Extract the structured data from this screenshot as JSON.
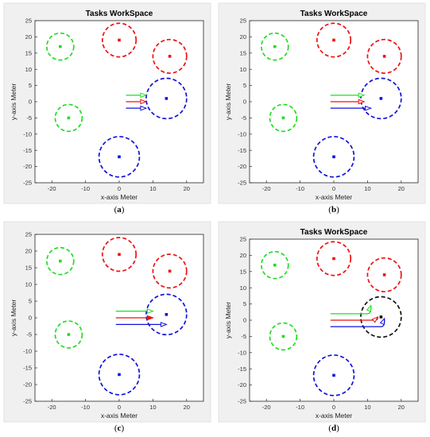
{
  "chart_data": [
    {
      "type": "scatter",
      "panel": "a",
      "title": "Tasks WorkSpace",
      "xlabel": "x-axis  Meter",
      "ylabel": "y-axis  Meter",
      "caption": "a",
      "xlim": [
        -25,
        25
      ],
      "ylim": [
        -25,
        25
      ],
      "xticks": [
        "-20",
        "-10",
        "0",
        "10",
        "20"
      ],
      "yticks": [
        "25",
        "20",
        "15",
        "10",
        "5",
        "0",
        "-5",
        "-10",
        "-15",
        "-20",
        "-25"
      ],
      "grid": false,
      "tasks": [
        {
          "x": -17.5,
          "y": 17,
          "r": 4,
          "color": "#22dd22"
        },
        {
          "x": -15,
          "y": -5,
          "r": 4,
          "color": "#22dd22"
        },
        {
          "x": 0,
          "y": 19,
          "r": 5,
          "color": "#ee1111"
        },
        {
          "x": 15,
          "y": 14,
          "r": 5,
          "color": "#ee1111"
        },
        {
          "x": 14,
          "y": 1,
          "r": 6,
          "color": "#1111dd"
        },
        {
          "x": 0,
          "y": -17,
          "r": 6,
          "color": "#1111dd"
        }
      ],
      "agents": [
        {
          "x0": 2,
          "x1": 8,
          "y": 2,
          "color": "#22dd22",
          "head": "open"
        },
        {
          "x0": 2,
          "x1": 8,
          "y": 0,
          "color": "#ee1111",
          "head": "open"
        },
        {
          "x0": 2,
          "x1": 8,
          "y": -2,
          "color": "#1111dd",
          "head": "open"
        }
      ]
    },
    {
      "type": "scatter",
      "panel": "b",
      "title": "Tasks WorkSpace",
      "xlabel": "x-axis  Meter",
      "ylabel": "y-axis  Meter",
      "caption": "b",
      "xlim": [
        -25,
        25
      ],
      "ylim": [
        -25,
        25
      ],
      "xticks": [
        "-20",
        "-10",
        "0",
        "10",
        "20"
      ],
      "yticks": [
        "25",
        "20",
        "15",
        "10",
        "5",
        "0",
        "-5",
        "-10",
        "-15",
        "-20",
        "-25"
      ],
      "grid": false,
      "tasks": [
        {
          "x": -17.5,
          "y": 17,
          "r": 4,
          "color": "#22dd22"
        },
        {
          "x": -15,
          "y": -5,
          "r": 4,
          "color": "#22dd22"
        },
        {
          "x": 0,
          "y": 19,
          "r": 5,
          "color": "#ee1111"
        },
        {
          "x": 15,
          "y": 14,
          "r": 5,
          "color": "#ee1111"
        },
        {
          "x": 14,
          "y": 1,
          "r": 6,
          "color": "#1111dd"
        },
        {
          "x": 0,
          "y": -17,
          "r": 6,
          "color": "#1111dd"
        }
      ],
      "agents": [
        {
          "x0": -1,
          "x1": 9,
          "y": 2,
          "color": "#22dd22",
          "head": "open"
        },
        {
          "x0": -1,
          "x1": 9,
          "y": 0,
          "color": "#ee1111",
          "head": "open"
        },
        {
          "x0": -1,
          "x1": 11,
          "y": -2,
          "color": "#1111dd",
          "head": "open"
        }
      ]
    },
    {
      "type": "scatter",
      "panel": "c",
      "title": "",
      "xlabel": "x-axis  Meter",
      "ylabel": "y-axis  Meter",
      "caption": "c",
      "xlim": [
        -25,
        25
      ],
      "ylim": [
        -25,
        25
      ],
      "xticks": [
        "-20",
        "-10",
        "0",
        "10",
        "20"
      ],
      "yticks": [
        "25",
        "20",
        "15",
        "10",
        "5",
        "0",
        "-5",
        "-10",
        "-15",
        "-20",
        "-25"
      ],
      "grid": false,
      "tasks": [
        {
          "x": -17.5,
          "y": 17,
          "r": 4,
          "color": "#22dd22"
        },
        {
          "x": -15,
          "y": -5,
          "r": 4,
          "color": "#22dd22"
        },
        {
          "x": 0,
          "y": 19,
          "r": 5,
          "color": "#ee1111"
        },
        {
          "x": 15,
          "y": 14,
          "r": 5,
          "color": "#ee1111"
        },
        {
          "x": 14,
          "y": 1,
          "r": 6,
          "color": "#1111dd"
        },
        {
          "x": 0,
          "y": -17,
          "r": 6,
          "color": "#1111dd"
        }
      ],
      "agents": [
        {
          "x0": -1,
          "x1": 10,
          "y": 2,
          "color": "#22dd22",
          "head": "open"
        },
        {
          "x0": -1,
          "x1": 10,
          "y": 0,
          "color": "#ee1111",
          "head": "filled"
        },
        {
          "x0": -1,
          "x1": 14,
          "y": -2,
          "color": "#1111dd",
          "head": "open"
        }
      ]
    },
    {
      "type": "scatter",
      "panel": "d",
      "title": "Tasks WorkSpace",
      "xlabel": "x-axis  Meter",
      "ylabel": "y-axis  Meter",
      "caption": "d",
      "xlim": [
        -25,
        25
      ],
      "ylim": [
        -25,
        25
      ],
      "xticks": [
        "-20",
        "-10",
        "0",
        "10",
        "20"
      ],
      "yticks": [
        "25",
        "20",
        "15",
        "10",
        "5",
        "0",
        "-5",
        "-10",
        "-15",
        "-20",
        "-25"
      ],
      "grid": false,
      "tasks": [
        {
          "x": -17.5,
          "y": 17,
          "r": 4,
          "color": "#22dd22"
        },
        {
          "x": -15,
          "y": -5,
          "r": 4,
          "color": "#22dd22"
        },
        {
          "x": 0,
          "y": 19,
          "r": 5,
          "color": "#ee1111"
        },
        {
          "x": 15,
          "y": 14,
          "r": 5,
          "color": "#ee1111"
        },
        {
          "x": 14,
          "y": 1,
          "r": 6,
          "color": "#111111"
        },
        {
          "x": 0,
          "y": -17,
          "r": 6,
          "color": "#1111dd"
        }
      ],
      "agents": [
        {
          "x0": -1,
          "x1": 10,
          "y": 2,
          "color": "#22dd22",
          "head": "open",
          "bend": [
            11,
            4.5
          ]
        },
        {
          "x0": -1,
          "x1": 12,
          "y": 0,
          "color": "#ee1111",
          "head": "open",
          "bend": [
            13,
            1
          ]
        },
        {
          "x0": -1,
          "x1": 14,
          "y": -2,
          "color": "#1111dd",
          "head": "open",
          "bend": [
            15,
            0.5
          ]
        }
      ]
    }
  ]
}
